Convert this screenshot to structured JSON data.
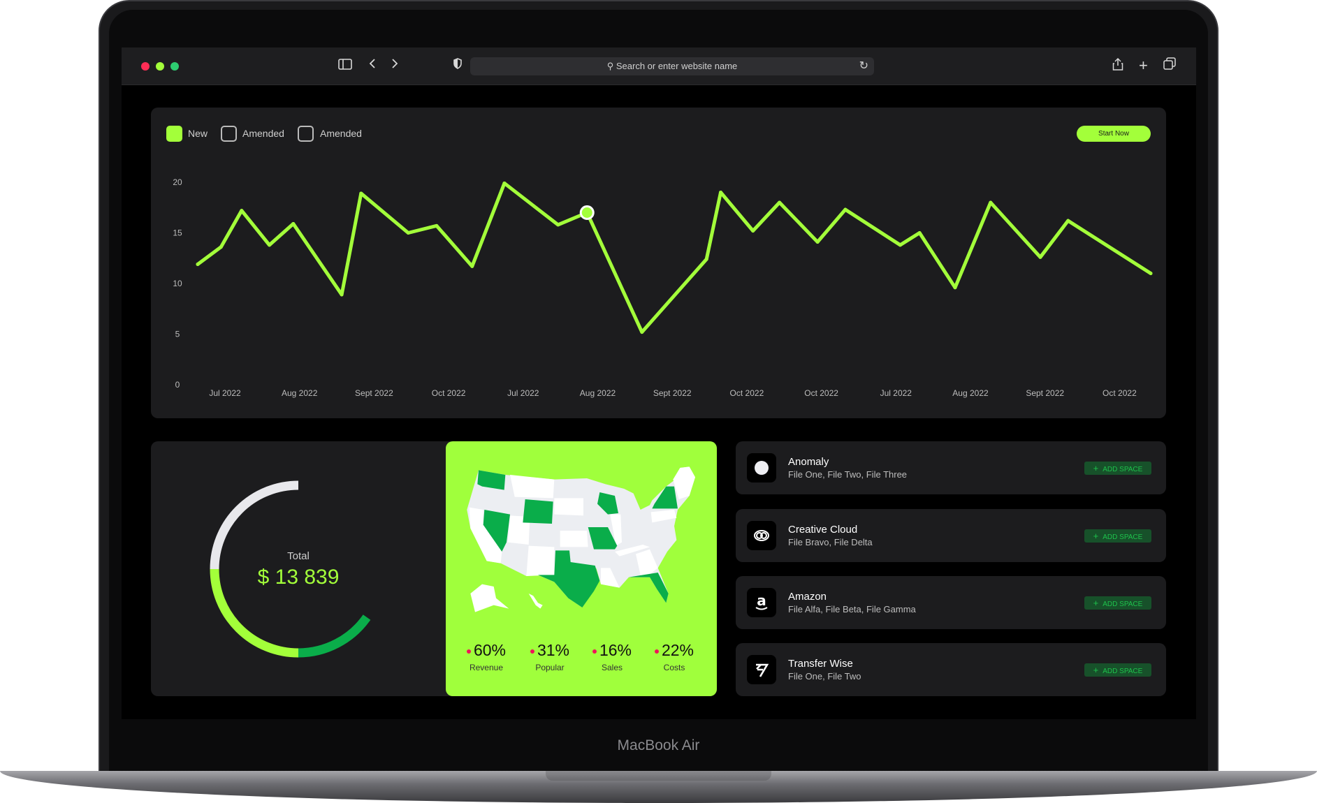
{
  "browser": {
    "address_placeholder": "Search or enter website name",
    "traffic_lights": [
      "#ff2d55",
      "#a3ff3a",
      "#2ecc71"
    ]
  },
  "device": {
    "label": "MacBook Air"
  },
  "chart_legend": {
    "items": [
      {
        "label": "New",
        "checked": true
      },
      {
        "label": "Amended",
        "checked": false
      },
      {
        "label": "Amended",
        "checked": false
      }
    ],
    "start_button": "Start Now"
  },
  "chart_data": {
    "type": "line",
    "ylim": [
      0,
      20
    ],
    "y_ticks": [
      "20",
      "15",
      "10",
      "5",
      "0"
    ],
    "x_tick_labels": [
      "Jul 2022",
      "Aug 2022",
      "Sept 2022",
      "Oct 2022",
      "Jul 2022",
      "Aug 2022",
      "Sept 2022",
      "Oct 2022",
      "Oct 2022",
      "Jul 2022",
      "Aug 2022",
      "Sept 2022",
      "Oct 2022"
    ],
    "values": [
      11.9,
      13.6,
      17.2,
      13.8,
      15.9,
      8.9,
      18.9,
      15.0,
      15.7,
      11.7,
      19.9,
      15.8,
      17.0,
      5.2,
      12.4,
      19.0,
      15.2,
      18.0,
      14.1,
      17.3,
      13.8,
      15.0,
      9.6,
      18.0,
      12.6,
      16.2,
      11.0
    ],
    "highlighted_index": 12,
    "line_color": "#a3ff3a",
    "grid": false
  },
  "total": {
    "label": "Total",
    "value": "$ 13 839",
    "segments": [
      {
        "color": "#e8e8ec",
        "fraction": 0.25
      },
      {
        "color": "#a3ff3a",
        "fraction": 0.25
      },
      {
        "color": "#0aad4a",
        "fraction": 0.15
      }
    ]
  },
  "map": {
    "highlight_color": "#0aad4a",
    "background": "#a0ff3c"
  },
  "stats": [
    {
      "value": "60%",
      "label": "Revenue"
    },
    {
      "value": "31%",
      "label": "Popular"
    },
    {
      "value": "16%",
      "label": "Sales"
    },
    {
      "value": "22%",
      "label": "Costs"
    }
  ],
  "apps": [
    {
      "name": "Anomaly",
      "files": "File One, File Two, File Three",
      "icon": "anomaly-icon",
      "button": "ADD SPACE"
    },
    {
      "name": "Creative Cloud",
      "files": "File Bravo, File Delta",
      "icon": "creative-cloud-icon",
      "button": "ADD SPACE"
    },
    {
      "name": "Amazon",
      "files": "File Alfa, File Beta, File Gamma",
      "icon": "amazon-icon",
      "button": "ADD SPACE"
    },
    {
      "name": "Transfer Wise",
      "files": "File One, File Two",
      "icon": "transferwise-icon",
      "button": "ADD SPACE"
    }
  ]
}
